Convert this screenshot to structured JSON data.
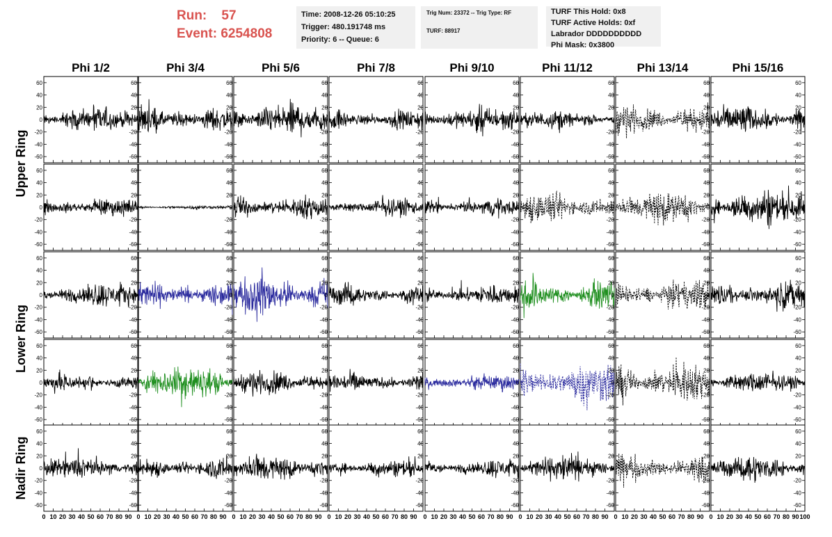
{
  "header": {
    "run_label": "Run:",
    "run_value": "57",
    "event_label": "Event:",
    "event_value": "6254808",
    "accent_color": "#d9534f"
  },
  "info_boxes": {
    "time": {
      "line1": "Time: 2008-12-26 05:10:25",
      "line2": "Trigger: 480.191748 ms",
      "line3": "Priority: 6 -- Queue: 6"
    },
    "trig": {
      "line1": "Trig Num: 23372 -- Trig Type: RF",
      "line2": "TURF: 88917"
    },
    "turf": {
      "line1": "TURF This Hold: 0x8",
      "line2": "TURF Active Holds: 0xf",
      "line3": "Labrador DDDDDDDDDD",
      "line4": "Phi Mask: 0x3800"
    }
  },
  "chart_data": {
    "type": "line",
    "columns": [
      "Phi 1/2",
      "Phi 3/4",
      "Phi 5/6",
      "Phi 7/8",
      "Phi 9/10",
      "Phi 11/12",
      "Phi 13/14",
      "Phi 15/16"
    ],
    "row_groups": [
      {
        "label": "Upper Ring",
        "rows": [
          0,
          1
        ]
      },
      {
        "label": "Lower Ring",
        "rows": [
          2,
          3
        ]
      },
      {
        "label": "Nadir Ring",
        "rows": [
          4
        ]
      }
    ],
    "xlim": [
      0,
      100
    ],
    "ylim": [
      -70,
      70
    ],
    "x_ticks": [
      "0",
      "10",
      "20",
      "30",
      "40",
      "50",
      "60",
      "70",
      "80",
      "90",
      "100"
    ],
    "y_ticks": [
      "-60",
      "-40",
      "-20",
      "0",
      "20",
      "40",
      "60"
    ],
    "colors": {
      "black": "#000000",
      "blue": "#2b2b9e",
      "green": "#1f8f1f"
    },
    "panels": [
      [
        {
          "amp": 20,
          "color": "black",
          "dashed": false
        },
        {
          "amp": 22,
          "color": "black",
          "dashed": false
        },
        {
          "amp": 28,
          "color": "black",
          "dashed": false
        },
        {
          "amp": 17,
          "color": "black",
          "dashed": false
        },
        {
          "amp": 20,
          "color": "black",
          "dashed": false
        },
        {
          "amp": 15,
          "color": "black",
          "dashed": false
        },
        {
          "amp": 25,
          "color": "black",
          "dashed": true
        },
        {
          "amp": 25,
          "color": "black",
          "dashed": false
        }
      ],
      [
        {
          "amp": 15,
          "color": "black",
          "dashed": false
        },
        {
          "amp": 3,
          "color": "black",
          "dashed": false
        },
        {
          "amp": 20,
          "color": "black",
          "dashed": false
        },
        {
          "amp": 15,
          "color": "black",
          "dashed": false
        },
        {
          "amp": 14,
          "color": "black",
          "dashed": false
        },
        {
          "amp": 25,
          "color": "black",
          "dashed": true
        },
        {
          "amp": 28,
          "color": "black",
          "dashed": true
        },
        {
          "amp": 30,
          "color": "black",
          "dashed": false
        }
      ],
      [
        {
          "amp": 20,
          "color": "black",
          "dashed": false
        },
        {
          "amp": 22,
          "color": "blue",
          "dashed": false
        },
        {
          "amp": 35,
          "color": "blue",
          "dashed": false
        },
        {
          "amp": 18,
          "color": "black",
          "dashed": false
        },
        {
          "amp": 17,
          "color": "black",
          "dashed": false
        },
        {
          "amp": 25,
          "color": "green",
          "dashed": false
        },
        {
          "amp": 24,
          "color": "black",
          "dashed": true
        },
        {
          "amp": 22,
          "color": "black",
          "dashed": false
        }
      ],
      [
        {
          "amp": 15,
          "color": "black",
          "dashed": false
        },
        {
          "amp": 30,
          "color": "green",
          "dashed": false
        },
        {
          "amp": 20,
          "color": "black",
          "dashed": false
        },
        {
          "amp": 17,
          "color": "black",
          "dashed": false
        },
        {
          "amp": 13,
          "color": "blue",
          "dashed": false
        },
        {
          "amp": 35,
          "color": "blue",
          "dashed": true
        },
        {
          "amp": 32,
          "color": "black",
          "dashed": true
        },
        {
          "amp": 18,
          "color": "black",
          "dashed": false
        }
      ],
      [
        {
          "amp": 18,
          "color": "black",
          "dashed": false
        },
        {
          "amp": 18,
          "color": "black",
          "dashed": false
        },
        {
          "amp": 23,
          "color": "black",
          "dashed": false
        },
        {
          "amp": 15,
          "color": "black",
          "dashed": false
        },
        {
          "amp": 15,
          "color": "black",
          "dashed": false
        },
        {
          "amp": 22,
          "color": "black",
          "dashed": false
        },
        {
          "amp": 25,
          "color": "black",
          "dashed": true
        },
        {
          "amp": 22,
          "color": "black",
          "dashed": false
        }
      ]
    ]
  }
}
